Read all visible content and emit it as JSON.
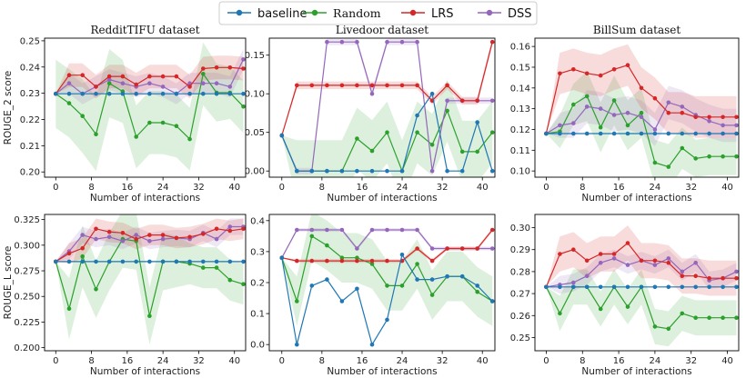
{
  "legend": [
    {
      "key": "baseline",
      "label": "baseline",
      "color": "#1f77b4"
    },
    {
      "key": "random",
      "label": "Random",
      "color": "#2ca02c"
    },
    {
      "key": "lrs",
      "label": "LRS",
      "color": "#d62728"
    },
    {
      "key": "dss",
      "label": "DSS",
      "color": "#9467bd"
    }
  ],
  "chart_data": [
    {
      "type": "line",
      "title": "RedditTIFU dataset",
      "xlabel": "Number of interactions",
      "ylabel": "ROUGE_2 score",
      "xlim": [
        -2.5,
        42.5
      ],
      "ylim": [
        0.198,
        0.251
      ],
      "xticks": [
        0,
        8,
        16,
        24,
        32,
        40
      ],
      "yticks": [
        0.2,
        0.21,
        0.22,
        0.23,
        0.24,
        0.25
      ],
      "ytick_labels": [
        "0.20",
        "0.21",
        "0.22",
        "0.23",
        "0.24",
        "0.25"
      ],
      "x": [
        0,
        3,
        6,
        9,
        12,
        15,
        18,
        21,
        24,
        27,
        30,
        33,
        36,
        39,
        42
      ],
      "series": [
        {
          "key": "baseline",
          "values": [
            0.2298,
            0.2298,
            0.2298,
            0.2298,
            0.2298,
            0.2298,
            0.2298,
            0.2298,
            0.2298,
            0.2298,
            0.2298,
            0.2298,
            0.2298,
            0.2298,
            0.2298
          ]
        },
        {
          "key": "random",
          "values": [
            0.2298,
            0.2262,
            0.2213,
            0.2144,
            0.2338,
            0.2307,
            0.2134,
            0.2188,
            0.2188,
            0.2175,
            0.2125,
            0.2374,
            0.2302,
            0.2302,
            0.2249
          ],
          "band": [
            0.013,
            0.013,
            0.014,
            0.014,
            0.013,
            0.012,
            0.012,
            0.012,
            0.012,
            0.012,
            0.012,
            0.012,
            0.011,
            0.01,
            0.01
          ]
        },
        {
          "key": "lrs",
          "values": [
            0.2298,
            0.2369,
            0.2369,
            0.2325,
            0.2364,
            0.2364,
            0.2333,
            0.2364,
            0.2364,
            0.2364,
            0.2325,
            0.2394,
            0.2398,
            0.2398,
            0.2394
          ],
          "band": [
            0.0,
            0.0045,
            0.0045,
            0.0045,
            0.0045,
            0.0045,
            0.0045,
            0.0045,
            0.0045,
            0.0045,
            0.0045,
            0.0045,
            0.0045,
            0.0045,
            0.0045
          ]
        },
        {
          "key": "dss",
          "values": [
            0.2298,
            0.2338,
            0.2298,
            0.2325,
            0.2352,
            0.2338,
            0.2325,
            0.2338,
            0.2325,
            0.2298,
            0.2338,
            0.2338,
            0.2338,
            0.2325,
            0.2429
          ],
          "band": [
            0.0,
            0.004,
            0.004,
            0.004,
            0.004,
            0.004,
            0.004,
            0.004,
            0.004,
            0.004,
            0.004,
            0.004,
            0.004,
            0.004,
            0.004
          ]
        }
      ]
    },
    {
      "type": "line",
      "title": "Livedoor dataset",
      "xlabel": "Number of interactions",
      "ylabel": "",
      "xlim": [
        -2.5,
        42.5
      ],
      "ylim": [
        -0.008,
        0.172
      ],
      "xticks": [
        0,
        8,
        16,
        24,
        32,
        40
      ],
      "yticks": [
        0.0,
        0.05,
        0.1,
        0.15
      ],
      "ytick_labels": [
        "0.00",
        "0.05",
        "0.10",
        "0.15"
      ],
      "x": [
        0,
        3,
        6,
        9,
        12,
        15,
        18,
        21,
        24,
        27,
        30,
        33,
        36,
        39,
        42
      ],
      "series": [
        {
          "key": "baseline",
          "values": [
            0.046,
            0.0,
            0.0,
            0.0,
            0.0,
            0.0,
            0.0,
            0.0,
            0.0,
            0.072,
            0.1,
            0.0,
            0.0,
            0.063,
            0.0
          ]
        },
        {
          "key": "random",
          "values": [
            0.046,
            0.0,
            0.0,
            0.0,
            0.0,
            0.042,
            0.026,
            0.05,
            0.0,
            0.05,
            0.034,
            0.078,
            0.025,
            0.025,
            0.05
          ],
          "band": [
            0.0,
            0.04,
            0.04,
            0.04,
            0.04,
            0.04,
            0.04,
            0.04,
            0.04,
            0.04,
            0.04,
            0.04,
            0.04,
            0.04,
            0.04
          ]
        },
        {
          "key": "lrs",
          "values": [
            0.046,
            0.111,
            0.111,
            0.111,
            0.111,
            0.111,
            0.111,
            0.111,
            0.111,
            0.111,
            0.091,
            0.111,
            0.091,
            0.091,
            0.167
          ],
          "band": [
            0.0,
            0.005,
            0.005,
            0.005,
            0.005,
            0.005,
            0.005,
            0.005,
            0.005,
            0.005,
            0.005,
            0.005,
            0.005,
            0.005,
            0.005
          ]
        },
        {
          "key": "dss",
          "values": [
            0.046,
            0.0,
            0.0,
            0.167,
            0.167,
            0.167,
            0.1,
            0.167,
            0.167,
            0.167,
            0.0,
            0.091,
            0.091,
            0.091,
            0.091
          ],
          "band": [
            0.0,
            0.004,
            0.004,
            0.004,
            0.004,
            0.004,
            0.004,
            0.004,
            0.004,
            0.004,
            0.004,
            0.004,
            0.004,
            0.004,
            0.004
          ]
        }
      ]
    },
    {
      "type": "line",
      "title": "BillSum dataset",
      "xlabel": "Number of interactions",
      "ylabel": "",
      "xlim": [
        -2.5,
        42.5
      ],
      "ylim": [
        0.097,
        0.164
      ],
      "xticks": [
        0,
        8,
        16,
        24,
        32,
        40
      ],
      "yticks": [
        0.1,
        0.11,
        0.12,
        0.13,
        0.14,
        0.15,
        0.16
      ],
      "ytick_labels": [
        "0.10",
        "0.11",
        "0.12",
        "0.13",
        "0.14",
        "0.15",
        "0.16"
      ],
      "x": [
        0,
        3,
        6,
        9,
        12,
        15,
        18,
        21,
        24,
        27,
        30,
        33,
        36,
        39,
        42
      ],
      "series": [
        {
          "key": "baseline",
          "values": [
            0.118,
            0.118,
            0.118,
            0.118,
            0.118,
            0.118,
            0.118,
            0.118,
            0.118,
            0.118,
            0.118,
            0.118,
            0.118,
            0.118,
            0.118
          ]
        },
        {
          "key": "random",
          "values": [
            0.118,
            0.119,
            0.132,
            0.136,
            0.121,
            0.134,
            0.122,
            0.128,
            0.104,
            0.102,
            0.111,
            0.106,
            0.107,
            0.107,
            0.107
          ],
          "band": [
            0.0,
            0.008,
            0.01,
            0.012,
            0.012,
            0.012,
            0.012,
            0.012,
            0.011,
            0.011,
            0.01,
            0.009,
            0.009,
            0.009,
            0.009
          ]
        },
        {
          "key": "lrs",
          "values": [
            0.118,
            0.147,
            0.149,
            0.147,
            0.146,
            0.149,
            0.151,
            0.14,
            0.135,
            0.128,
            0.128,
            0.126,
            0.126,
            0.126,
            0.126
          ],
          "band": [
            0.0,
            0.01,
            0.01,
            0.01,
            0.01,
            0.01,
            0.01,
            0.01,
            0.01,
            0.01,
            0.01,
            0.01,
            0.01,
            0.01,
            0.01
          ]
        },
        {
          "key": "dss",
          "values": [
            0.118,
            0.122,
            0.123,
            0.131,
            0.13,
            0.127,
            0.128,
            0.126,
            0.12,
            0.133,
            0.131,
            0.127,
            0.124,
            0.122,
            0.122
          ],
          "band": [
            0.0,
            0.006,
            0.007,
            0.008,
            0.008,
            0.008,
            0.008,
            0.008,
            0.008,
            0.008,
            0.008,
            0.008,
            0.008,
            0.008,
            0.008
          ]
        }
      ]
    },
    {
      "type": "line",
      "title": "",
      "xlabel": "Number of interactions",
      "ylabel": "ROUGE_L score",
      "xlim": [
        -2.5,
        42.5
      ],
      "ylim": [
        0.197,
        0.33
      ],
      "xticks": [
        0,
        8,
        16,
        24,
        32,
        40
      ],
      "yticks": [
        0.2,
        0.225,
        0.25,
        0.275,
        0.3,
        0.325
      ],
      "ytick_labels": [
        "0.200",
        "0.225",
        "0.250",
        "0.275",
        "0.300",
        "0.325"
      ],
      "x": [
        0,
        3,
        6,
        9,
        12,
        15,
        18,
        21,
        24,
        27,
        30,
        33,
        36,
        39,
        42
      ],
      "series": [
        {
          "key": "baseline",
          "values": [
            0.284,
            0.284,
            0.284,
            0.284,
            0.284,
            0.284,
            0.284,
            0.284,
            0.284,
            0.284,
            0.284,
            0.284,
            0.284,
            0.284,
            0.284
          ]
        },
        {
          "key": "random",
          "values": [
            0.284,
            0.238,
            0.289,
            0.257,
            0.284,
            0.306,
            0.304,
            0.231,
            0.284,
            0.284,
            0.282,
            0.278,
            0.278,
            0.266,
            0.262
          ],
          "band": [
            0.0,
            0.03,
            0.03,
            0.028,
            0.028,
            0.028,
            0.028,
            0.028,
            0.028,
            0.025,
            0.02,
            0.02,
            0.02,
            0.02,
            0.02
          ]
        },
        {
          "key": "lrs",
          "values": [
            0.284,
            0.292,
            0.297,
            0.316,
            0.313,
            0.312,
            0.306,
            0.31,
            0.31,
            0.307,
            0.308,
            0.311,
            0.316,
            0.314,
            0.316
          ],
          "band": [
            0.0,
            0.01,
            0.01,
            0.01,
            0.01,
            0.01,
            0.01,
            0.01,
            0.01,
            0.01,
            0.01,
            0.01,
            0.01,
            0.01,
            0.01
          ]
        },
        {
          "key": "dss",
          "values": [
            0.284,
            0.294,
            0.31,
            0.306,
            0.308,
            0.304,
            0.31,
            0.304,
            0.306,
            0.307,
            0.306,
            0.312,
            0.306,
            0.318,
            0.318
          ],
          "band": [
            0.0,
            0.008,
            0.008,
            0.008,
            0.008,
            0.008,
            0.008,
            0.008,
            0.008,
            0.008,
            0.008,
            0.008,
            0.008,
            0.008,
            0.008
          ]
        }
      ]
    },
    {
      "type": "line",
      "title": "",
      "xlabel": "Number of interactions",
      "ylabel": "",
      "xlim": [
        -2.5,
        42.5
      ],
      "ylim": [
        -0.02,
        0.42
      ],
      "xticks": [
        0,
        8,
        16,
        24,
        32,
        40
      ],
      "yticks": [
        0.0,
        0.1,
        0.2,
        0.3,
        0.4
      ],
      "ytick_labels": [
        "0.0",
        "0.1",
        "0.2",
        "0.3",
        "0.4"
      ],
      "x": [
        0,
        3,
        6,
        9,
        12,
        15,
        18,
        21,
        24,
        27,
        30,
        33,
        36,
        39,
        42
      ],
      "series": [
        {
          "key": "baseline",
          "values": [
            0.28,
            0.0,
            0.19,
            0.21,
            0.14,
            0.18,
            0.0,
            0.08,
            0.29,
            0.21,
            0.21,
            0.22,
            0.22,
            0.19,
            0.14
          ]
        },
        {
          "key": "random",
          "values": [
            0.28,
            0.14,
            0.35,
            0.32,
            0.28,
            0.28,
            0.26,
            0.19,
            0.19,
            0.26,
            0.16,
            0.22,
            0.22,
            0.17,
            0.14
          ],
          "band": [
            0.0,
            0.08,
            0.08,
            0.08,
            0.08,
            0.08,
            0.08,
            0.08,
            0.08,
            0.08,
            0.08,
            0.08,
            0.08,
            0.08,
            0.08
          ]
        },
        {
          "key": "lrs",
          "values": [
            0.28,
            0.27,
            0.27,
            0.27,
            0.27,
            0.27,
            0.27,
            0.27,
            0.27,
            0.31,
            0.27,
            0.31,
            0.31,
            0.31,
            0.37
          ],
          "band": [
            0.0,
            0.006,
            0.006,
            0.006,
            0.006,
            0.006,
            0.006,
            0.006,
            0.006,
            0.006,
            0.006,
            0.006,
            0.006,
            0.006,
            0.006
          ]
        },
        {
          "key": "dss",
          "values": [
            0.28,
            0.37,
            0.37,
            0.37,
            0.37,
            0.31,
            0.37,
            0.37,
            0.37,
            0.37,
            0.31,
            0.31,
            0.31,
            0.31,
            0.31
          ],
          "band": [
            0.0,
            0.006,
            0.006,
            0.006,
            0.006,
            0.006,
            0.006,
            0.006,
            0.006,
            0.006,
            0.006,
            0.006,
            0.006,
            0.006,
            0.006
          ]
        }
      ]
    },
    {
      "type": "line",
      "title": "",
      "xlabel": "Number of interactions",
      "ylabel": "",
      "xlim": [
        -2.5,
        42.5
      ],
      "ylim": [
        0.244,
        0.306
      ],
      "xticks": [
        0,
        8,
        16,
        24,
        32,
        40
      ],
      "yticks": [
        0.25,
        0.26,
        0.27,
        0.28,
        0.29,
        0.3
      ],
      "ytick_labels": [
        "0.25",
        "0.26",
        "0.27",
        "0.28",
        "0.29",
        "0.30"
      ],
      "x": [
        0,
        3,
        6,
        9,
        12,
        15,
        18,
        21,
        24,
        27,
        30,
        33,
        36,
        39,
        42
      ],
      "series": [
        {
          "key": "baseline",
          "values": [
            0.273,
            0.273,
            0.273,
            0.273,
            0.273,
            0.273,
            0.273,
            0.273,
            0.273,
            0.273,
            0.273,
            0.273,
            0.273,
            0.273,
            0.273
          ]
        },
        {
          "key": "random",
          "values": [
            0.273,
            0.261,
            0.273,
            0.273,
            0.263,
            0.273,
            0.264,
            0.273,
            0.255,
            0.254,
            0.261,
            0.259,
            0.259,
            0.259,
            0.259
          ],
          "band": [
            0.0,
            0.008,
            0.008,
            0.008,
            0.008,
            0.008,
            0.008,
            0.008,
            0.008,
            0.008,
            0.008,
            0.008,
            0.008,
            0.008,
            0.008
          ]
        },
        {
          "key": "lrs",
          "values": [
            0.273,
            0.288,
            0.29,
            0.285,
            0.288,
            0.288,
            0.293,
            0.285,
            0.285,
            0.284,
            0.278,
            0.278,
            0.277,
            0.277,
            0.277
          ],
          "band": [
            0.0,
            0.008,
            0.008,
            0.008,
            0.008,
            0.008,
            0.008,
            0.008,
            0.008,
            0.008,
            0.008,
            0.008,
            0.008,
            0.008,
            0.008
          ]
        },
        {
          "key": "dss",
          "values": [
            0.273,
            0.274,
            0.275,
            0.278,
            0.284,
            0.286,
            0.283,
            0.285,
            0.283,
            0.286,
            0.28,
            0.284,
            0.276,
            0.277,
            0.28
          ],
          "band": [
            0.0,
            0.004,
            0.004,
            0.004,
            0.004,
            0.004,
            0.004,
            0.004,
            0.004,
            0.004,
            0.004,
            0.004,
            0.004,
            0.004,
            0.004
          ]
        }
      ]
    }
  ]
}
